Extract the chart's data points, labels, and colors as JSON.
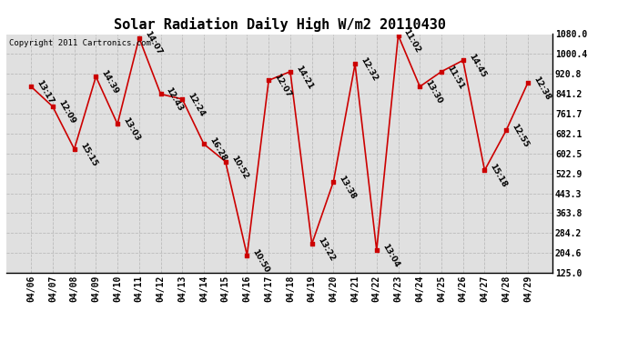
{
  "title": "Solar Radiation Daily High W/m2 20110430",
  "copyright": "Copyright 2011 Cartronics.com",
  "dates": [
    "04/06",
    "04/07",
    "04/08",
    "04/09",
    "04/10",
    "04/11",
    "04/12",
    "04/13",
    "04/14",
    "04/15",
    "04/16",
    "04/17",
    "04/18",
    "04/19",
    "04/20",
    "04/21",
    "04/22",
    "04/23",
    "04/24",
    "04/25",
    "04/26",
    "04/27",
    "04/28",
    "04/29"
  ],
  "values": [
    870,
    790,
    620,
    910,
    720,
    1065,
    840,
    820,
    640,
    570,
    195,
    895,
    930,
    240,
    490,
    960,
    215,
    1075,
    870,
    930,
    975,
    535,
    695,
    885
  ],
  "labels": [
    "13:17",
    "12:09",
    "15:15",
    "14:39",
    "13:03",
    "14:07",
    "12:43",
    "12:24",
    "16:28",
    "10:52",
    "10:50",
    "12:07",
    "14:21",
    "13:22",
    "13:38",
    "12:32",
    "13:04",
    "11:02",
    "13:30",
    "11:51",
    "14:45",
    "15:18",
    "12:55",
    "12:38"
  ],
  "ylim": [
    125.0,
    1080.0
  ],
  "yticks": [
    125.0,
    204.6,
    284.2,
    363.8,
    443.3,
    522.9,
    602.5,
    682.1,
    761.7,
    841.2,
    920.8,
    1000.4,
    1080.0
  ],
  "line_color": "#cc0000",
  "marker_color": "#cc0000",
  "grid_color": "#bbbbbb",
  "bg_color": "#ffffff",
  "plot_bg_color": "#e0e0e0",
  "title_fontsize": 11,
  "label_fontsize": 6.5,
  "tick_fontsize": 7,
  "copyright_fontsize": 6.5
}
